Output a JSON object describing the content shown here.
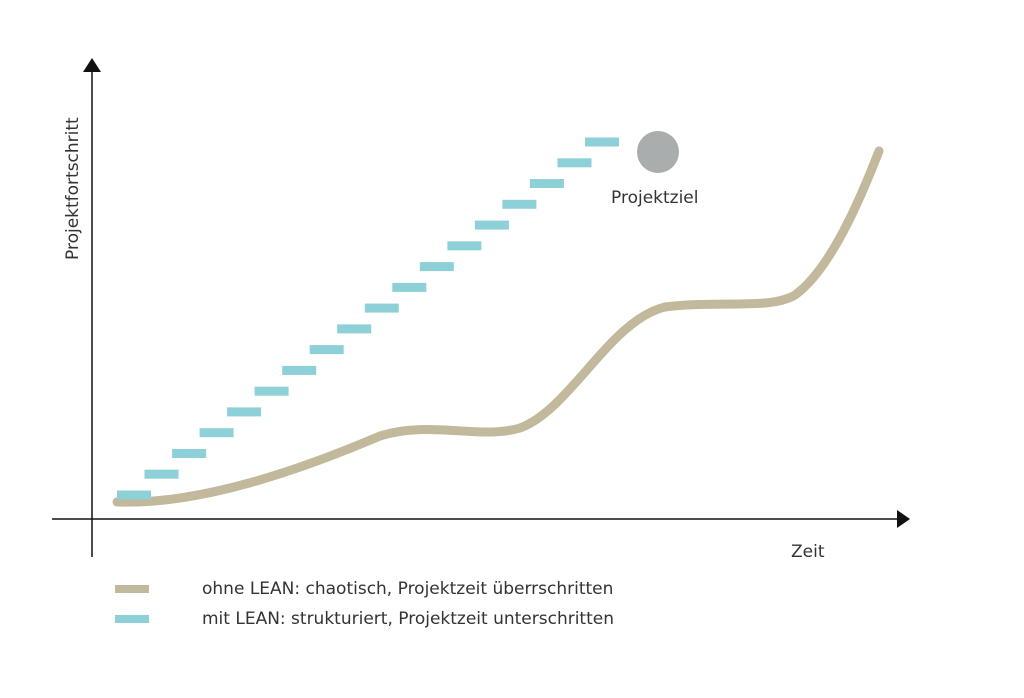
{
  "labels": {
    "y_axis": "Projektfortschritt",
    "x_axis": "Zeit",
    "goal": "Projektziel"
  },
  "legend": [
    {
      "label": "ohne LEAN: chaotisch, Projektzeit überrschritten",
      "color": "#c2b89c",
      "style": "solid"
    },
    {
      "label": "mit LEAN: strukturiert, Projektzeit unterschritten",
      "color": "#8dd0d8",
      "style": "dashed"
    }
  ],
  "colors": {
    "axis": "#111111",
    "chaotic_line": "#c2b89c",
    "structured_steps": "#8dd0d8",
    "goal_marker": "#a9adad"
  },
  "structured_steps_count": 18
}
